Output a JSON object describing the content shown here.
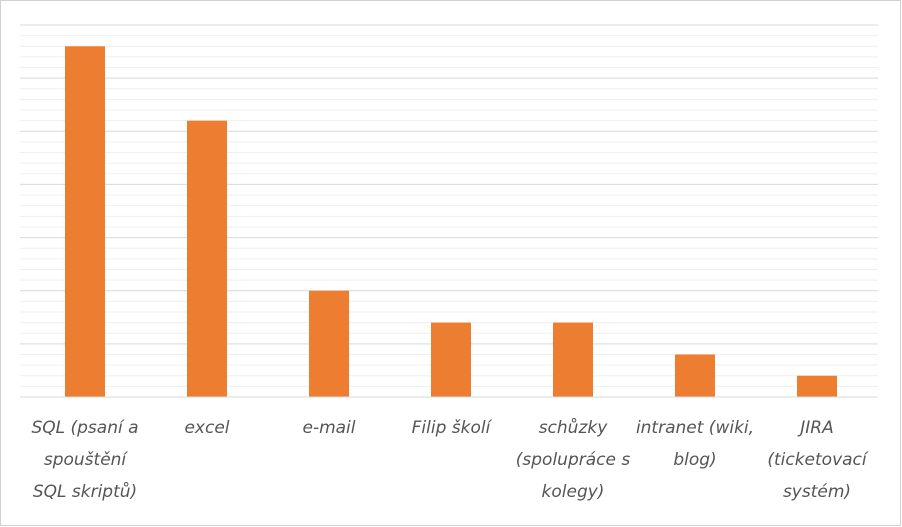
{
  "chart_data": {
    "type": "bar",
    "categories": [
      "SQL (psaní a spouštění SQL skriptů)",
      "excel",
      "e-mail",
      "Filip školí",
      "schůzky (spolupráce s kolegy)",
      "intranet (wiki, blog)",
      "JIRA (ticketovací systém)"
    ],
    "values": [
      33,
      26,
      10,
      7,
      7,
      4,
      2
    ],
    "color": "#ed7d31",
    "ylim": [
      0,
      35
    ],
    "yticks": [
      0,
      1,
      2,
      3,
      4,
      5,
      6,
      7,
      8,
      9,
      10,
      11,
      12,
      13,
      14,
      15,
      16,
      17,
      18,
      19,
      20,
      21,
      22,
      23,
      24,
      25,
      26,
      27,
      28,
      29,
      30,
      31,
      32,
      33,
      34,
      35
    ],
    "grid": true
  }
}
